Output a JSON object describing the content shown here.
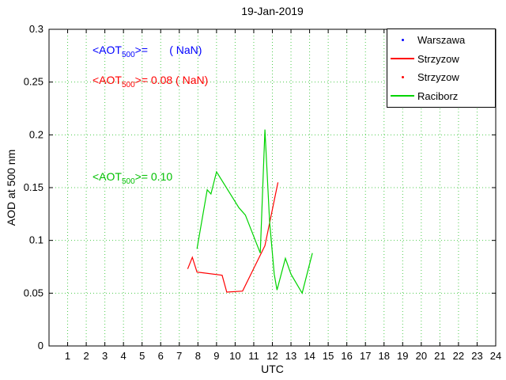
{
  "title": "19-Jan-2019",
  "chart_data": {
    "type": "line",
    "title": "19-Jan-2019",
    "xlabel": "UTC",
    "ylabel": "AOD at 500 nm",
    "xlim": [
      0,
      24
    ],
    "ylim": [
      0,
      0.3
    ],
    "xticks": [
      1,
      2,
      3,
      4,
      5,
      6,
      7,
      8,
      9,
      10,
      11,
      12,
      13,
      14,
      15,
      16,
      17,
      18,
      19,
      20,
      21,
      22,
      23,
      24
    ],
    "yticks": [
      0,
      0.05,
      0.1,
      0.15,
      0.2,
      0.25,
      0.3
    ],
    "ytick_labels": [
      "0",
      "0.05",
      "0.1",
      "0.15",
      "0.2",
      "0.25",
      "0.3"
    ],
    "grid": true,
    "grid_color": "#4ecb4e",
    "axis_color": "#000000",
    "series": [
      {
        "name": "Warszawa",
        "type": "scatter",
        "color": "#0000ff",
        "x": [],
        "y": []
      },
      {
        "name": "Strzyzow",
        "type": "line",
        "color": "#ff0000",
        "x": [
          7.45,
          7.7,
          7.95,
          9.3,
          9.55,
          10.4,
          11.6,
          12.3
        ],
        "y": [
          0.073,
          0.084,
          0.07,
          0.067,
          0.051,
          0.052,
          0.095,
          0.155
        ]
      },
      {
        "name": "Strzyzow",
        "type": "scatter",
        "color": "#ff0000",
        "x": [],
        "y": []
      },
      {
        "name": "Raciborz",
        "type": "line",
        "color": "#00d400",
        "x": [
          7.95,
          8.5,
          8.7,
          9.0,
          10.2,
          10.55,
          11.35,
          11.6,
          11.85,
          12.1,
          12.25,
          12.7,
          13.0,
          13.6,
          14.15
        ],
        "y": [
          0.092,
          0.148,
          0.144,
          0.165,
          0.131,
          0.124,
          0.088,
          0.205,
          0.118,
          0.068,
          0.053,
          0.083,
          0.068,
          0.05,
          0.088
        ]
      }
    ],
    "legend": {
      "position": "top-right",
      "entries": [
        {
          "label": "Warszawa",
          "marker": "dot",
          "color": "#0000ff"
        },
        {
          "label": "Strzyzow",
          "marker": "line",
          "color": "#ff0000"
        },
        {
          "label": "Strzyzow",
          "marker": "dot",
          "color": "#ff0000"
        },
        {
          "label": "Raciborz",
          "marker": "line",
          "color": "#00d400"
        }
      ]
    },
    "annotations": [
      {
        "color": "#0000ff",
        "prefix": "<AOT",
        "sub": "500",
        "suffix": ">=       ( NaN)"
      },
      {
        "color": "#ff0000",
        "prefix": "<AOT",
        "sub": "500",
        "suffix": ">= 0.08 ( NaN)"
      },
      {
        "color": "#00c000",
        "prefix": "<AOT",
        "sub": "500",
        "suffix": ">= 0.10"
      }
    ]
  }
}
